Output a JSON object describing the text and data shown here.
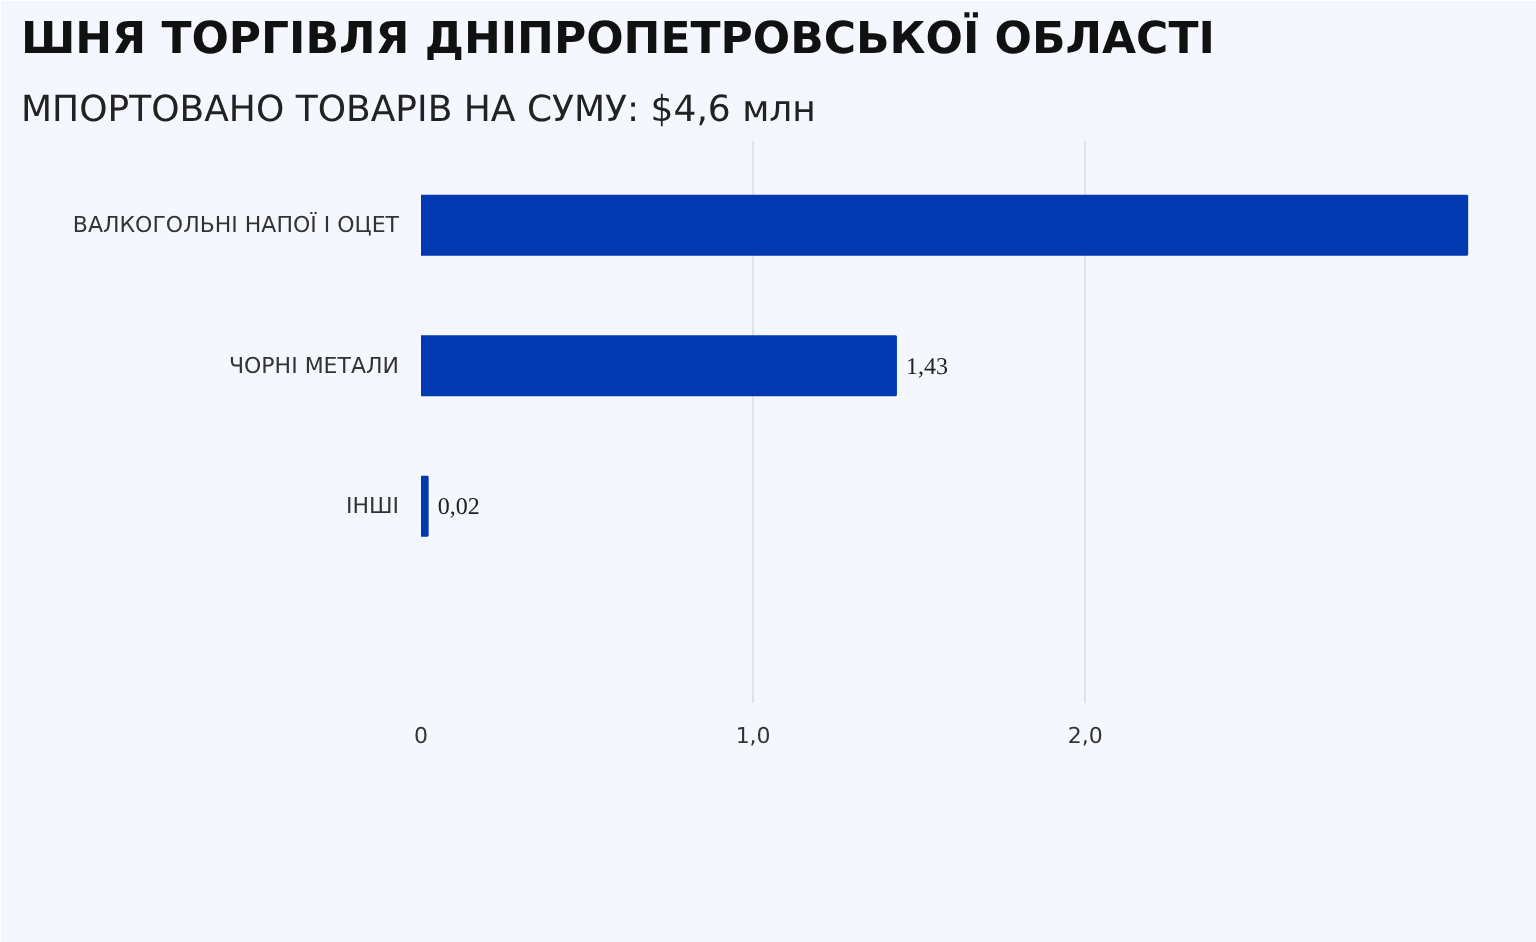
{
  "chart_data": {
    "type": "bar",
    "orientation": "horizontal",
    "title": "ШНЯ ТОРГІВЛЯ ДНІПРОПЕТРОВСЬКОЇ ОБЛАСТІ",
    "subtitle": "МПОРТОВАНО ТОВАРІВ НА СУМУ:  $4,6 млн",
    "categories": [
      "ВАЛКОГОЛЬНІ НАПОЇ І ОЦЕТ",
      "ЧОРНІ МЕТАЛИ",
      "ІНШІ"
    ],
    "values": [
      3.15,
      1.43,
      0.02
    ],
    "color": "#0039b0",
    "value_labels": [
      null,
      "1,43",
      "0,02"
    ],
    "xlim": [
      0,
      3.3
    ],
    "xticks": [
      0,
      {
        "value": 1,
        "label": "1,0"
      },
      {
        "value": 2,
        "label": "2,0"
      }
    ],
    "grid": "x"
  }
}
